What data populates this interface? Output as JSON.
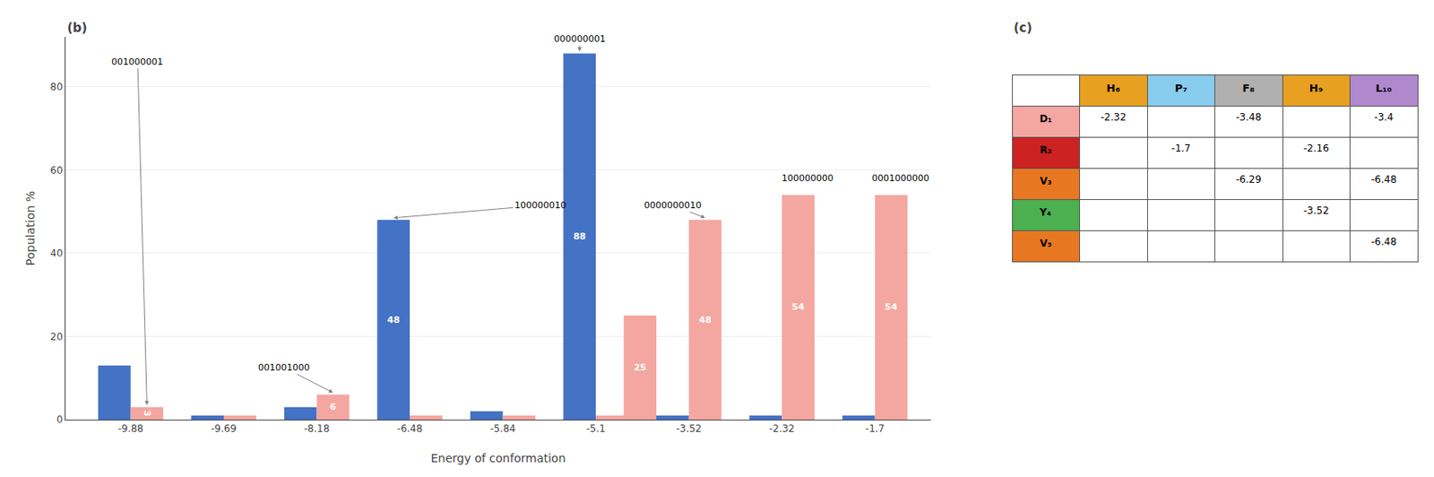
{
  "chart_data": [
    {
      "type": "bar",
      "title": "(b)",
      "categories": [
        "-9.88",
        "-9.69",
        "-8.18",
        "-6.48",
        "-5.84",
        "-5.1",
        "-3.52",
        "-2.32",
        "-1.7"
      ],
      "xlabel": "Energy of conformation",
      "ylabel": "Population %",
      "ylim": [
        0,
        92
      ],
      "yticks": [
        0,
        20,
        40,
        60,
        80
      ],
      "grid": true,
      "series": [
        {
          "color": "#4472C4",
          "values": [
            13,
            1,
            3,
            48,
            2,
            88,
            1,
            1,
            1
          ],
          "value_labels": [
            null,
            null,
            null,
            "48",
            null,
            "88",
            null,
            null,
            null
          ]
        },
        {
          "color": "#F4A6A0",
          "values": [
            3,
            1,
            6,
            1,
            1,
            1,
            48,
            54,
            54
          ],
          "value_labels": [
            "3",
            null,
            "6",
            null,
            null,
            null,
            "48",
            "54",
            "54"
          ]
        },
        {
          "color": "#F4A6A0",
          "values": [
            null,
            null,
            null,
            null,
            null,
            null,
            25,
            null,
            null
          ],
          "value_labels": [
            null,
            null,
            null,
            null,
            null,
            null,
            "25",
            null,
            null
          ]
        }
      ],
      "annotations": [
        {
          "text": "001000001"
        },
        {
          "text": "001001000"
        },
        {
          "text": "000000001"
        },
        {
          "text": "100000010"
        },
        {
          "text": "0000000010"
        },
        {
          "text": "100000000"
        },
        {
          "text": "0001000000"
        }
      ]
    },
    {
      "type": "table",
      "title": "(c)",
      "rows": [
        "D₁",
        "R₂",
        "V₃",
        "Y₄",
        "V₅"
      ],
      "columns": [
        "H₆",
        "P₇",
        "F₈",
        "H₉",
        "L₁₀"
      ],
      "cells": [
        [
          -2.32,
          null,
          -3.48,
          null,
          -3.4
        ],
        [
          null,
          -1.7,
          null,
          -2.16,
          null
        ],
        [
          null,
          null,
          -6.29,
          null,
          -6.48
        ],
        [
          null,
          null,
          null,
          -3.52,
          null
        ],
        [
          null,
          null,
          null,
          null,
          -6.48
        ]
      ],
      "row_colors": [
        "#F4A6A0",
        "#cc2222",
        "#E87722",
        "#4CAF50",
        "#E87722"
      ],
      "col_colors": [
        "#E8A020",
        "#88CCEE",
        "#B0B0B0",
        "#E8A020",
        "#B088CC"
      ]
    }
  ]
}
